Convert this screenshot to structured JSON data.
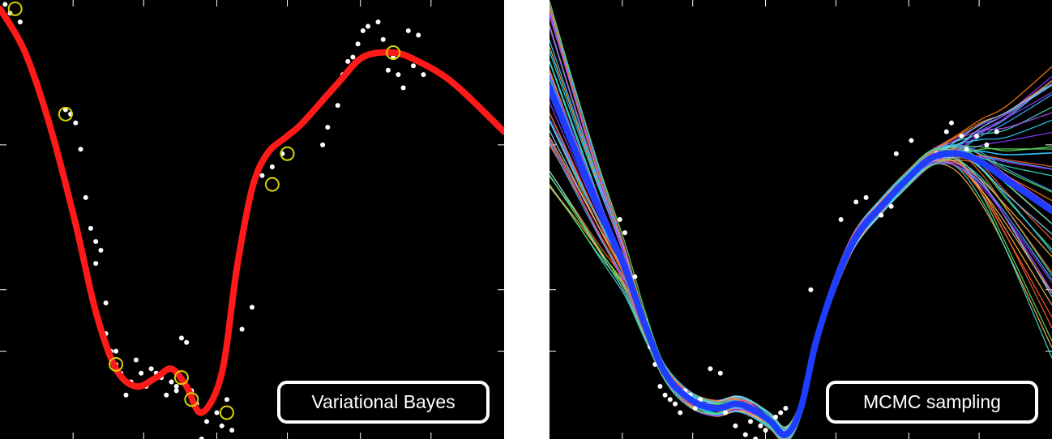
{
  "chart_data": [
    {
      "type": "line",
      "label": "Variational Bayes",
      "xlim": [
        0,
        1
      ],
      "ylim": [
        -0.5,
        0.5
      ],
      "grid": false,
      "colors": {
        "background": "#000000",
        "fit": "#ff1a1a",
        "data": "#ffffff",
        "inducing": "#d8d400"
      },
      "series": [
        {
          "role": "fit",
          "x": [
            0.0,
            0.05,
            0.1,
            0.15,
            0.19,
            0.23,
            0.27,
            0.31,
            0.34,
            0.37,
            0.4,
            0.44,
            0.47,
            0.5,
            0.53,
            0.57,
            0.6,
            0.67,
            0.72,
            0.78,
            0.83,
            0.9,
            1.0
          ],
          "y": [
            0.48,
            0.38,
            0.21,
            -0.01,
            -0.21,
            -0.34,
            -0.38,
            -0.36,
            -0.34,
            -0.38,
            -0.44,
            -0.35,
            -0.11,
            0.07,
            0.15,
            0.19,
            0.22,
            0.31,
            0.37,
            0.38,
            0.36,
            0.31,
            0.2
          ]
        },
        {
          "role": "inducing",
          "x": [
            0.03,
            0.13,
            0.23,
            0.36,
            0.38,
            0.45,
            0.54,
            0.57,
            0.78
          ],
          "y": [
            0.48,
            0.24,
            -0.33,
            -0.36,
            -0.41,
            -0.44,
            0.08,
            0.15,
            0.38
          ]
        },
        {
          "role": "data",
          "x": [
            0.01,
            0.02,
            0.04,
            0.13,
            0.14,
            0.15,
            0.16,
            0.17,
            0.18,
            0.19,
            0.19,
            0.2,
            0.21,
            0.21,
            0.22,
            0.23,
            0.23,
            0.24,
            0.25,
            0.26,
            0.27,
            0.28,
            0.29,
            0.3,
            0.31,
            0.32,
            0.33,
            0.34,
            0.35,
            0.35,
            0.36,
            0.37,
            0.38,
            0.39,
            0.4,
            0.41,
            0.42,
            0.43,
            0.44,
            0.45,
            0.46,
            0.48,
            0.5,
            0.52,
            0.54,
            0.56,
            0.64,
            0.65,
            0.67,
            0.68,
            0.69,
            0.7,
            0.71,
            0.72,
            0.73,
            0.75,
            0.76,
            0.77,
            0.78,
            0.79,
            0.8,
            0.81,
            0.82,
            0.83,
            0.84
          ],
          "y": [
            0.49,
            0.47,
            0.45,
            0.25,
            0.24,
            0.22,
            0.16,
            0.05,
            -0.02,
            -0.05,
            -0.1,
            -0.07,
            -0.19,
            -0.26,
            -0.3,
            -0.33,
            -0.3,
            -0.35,
            -0.4,
            -0.37,
            -0.32,
            -0.35,
            -0.38,
            -0.34,
            -0.35,
            -0.36,
            -0.4,
            -0.37,
            -0.39,
            -0.38,
            -0.27,
            -0.28,
            -0.39,
            -0.42,
            -0.5,
            -0.46,
            -0.41,
            -0.44,
            -0.47,
            -0.41,
            -0.48,
            -0.25,
            -0.2,
            0.1,
            0.12,
            0.15,
            0.17,
            0.21,
            0.26,
            0.33,
            0.36,
            0.37,
            0.4,
            0.43,
            0.44,
            0.45,
            0.41,
            0.34,
            0.37,
            0.33,
            0.3,
            0.43,
            0.35,
            0.42,
            0.33
          ]
        }
      ]
    },
    {
      "type": "line",
      "label": "MCMC sampling",
      "xlim": [
        0,
        1
      ],
      "ylim": [
        -0.5,
        0.5
      ],
      "grid": false,
      "colors": {
        "background": "#000000",
        "mean": "#1f3dff",
        "data": "#ffffff"
      },
      "series": [
        {
          "role": "mean",
          "x": [
            0.0,
            0.05,
            0.1,
            0.15,
            0.19,
            0.23,
            0.28,
            0.33,
            0.37,
            0.4,
            0.44,
            0.47,
            0.5,
            0.53,
            0.57,
            0.61,
            0.66,
            0.71,
            0.76,
            0.81,
            0.86,
            0.91,
            1.0
          ],
          "y": [
            0.3,
            0.16,
            0.02,
            -0.11,
            -0.24,
            -0.35,
            -0.41,
            -0.43,
            -0.42,
            -0.43,
            -0.46,
            -0.49,
            -0.43,
            -0.28,
            -0.14,
            -0.04,
            0.03,
            0.09,
            0.14,
            0.15,
            0.13,
            0.09,
            0.02
          ]
        },
        {
          "role": "samples",
          "count": 45,
          "colors": [
            "#38e0c8",
            "#ff7a1a",
            "#8a3cff",
            "#3db0ff",
            "#5fe05f",
            "#ffb04a",
            "#2ad0ff",
            "#c04cff",
            "#ff5a2a",
            "#7fd4ff"
          ]
        },
        {
          "role": "data",
          "x": [
            0.14,
            0.15,
            0.17,
            0.18,
            0.19,
            0.2,
            0.21,
            0.22,
            0.23,
            0.24,
            0.25,
            0.26,
            0.27,
            0.28,
            0.29,
            0.3,
            0.32,
            0.34,
            0.35,
            0.37,
            0.39,
            0.4,
            0.41,
            0.42,
            0.43,
            0.45,
            0.46,
            0.47,
            0.52,
            0.58,
            0.61,
            0.63,
            0.66,
            0.68,
            0.69,
            0.72,
            0.74,
            0.77,
            0.79,
            0.8,
            0.82,
            0.83,
            0.85,
            0.87,
            0.89
          ],
          "y": [
            0.0,
            -0.03,
            -0.13,
            -0.2,
            -0.23,
            -0.29,
            -0.33,
            -0.38,
            -0.4,
            -0.41,
            -0.42,
            -0.44,
            -0.39,
            -0.4,
            -0.43,
            -0.41,
            -0.34,
            -0.35,
            -0.44,
            -0.47,
            -0.49,
            -0.46,
            -0.5,
            -0.47,
            -0.48,
            -0.45,
            -0.44,
            -0.43,
            -0.16,
            0.0,
            0.04,
            0.05,
            0.01,
            0.03,
            0.15,
            0.18,
            0.12,
            0.15,
            0.2,
            0.22,
            0.19,
            0.16,
            0.19,
            0.17,
            0.2
          ]
        }
      ]
    }
  ]
}
